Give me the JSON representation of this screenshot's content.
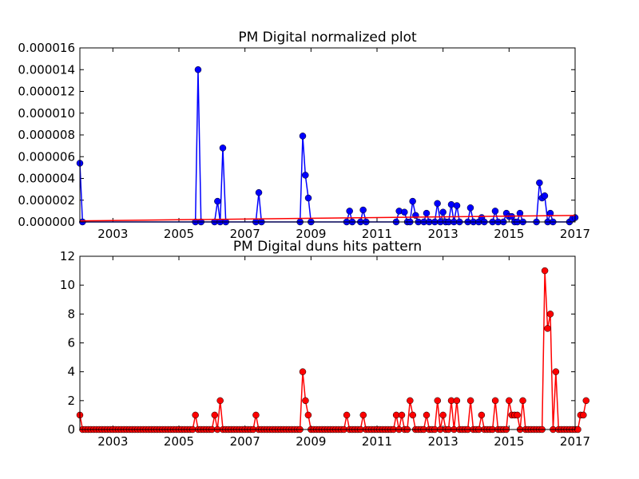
{
  "chart_data": [
    {
      "type": "line",
      "title": "PM Digital normalized plot",
      "xlabel": "",
      "ylabel": "",
      "xlim": [
        2002.0,
        2017.0
      ],
      "ylim": [
        0,
        1.6e-05
      ],
      "xticks": [
        "2003",
        "2005",
        "2007",
        "2009",
        "2011",
        "2013",
        "2015",
        "2017"
      ],
      "yticks": [
        "0.000000",
        "0.000002",
        "0.000004",
        "0.000006",
        "0.000008",
        "0.000010",
        "0.000012",
        "0.000014",
        "0.000016"
      ],
      "grid": false,
      "series": [
        {
          "style": "line-with-markers",
          "color": "#0000ff",
          "points": [
            [
              2002.0,
              5.4e-06
            ],
            [
              2002.08,
              0.0
            ],
            [
              2005.5,
              0.0
            ],
            [
              2005.58,
              1.4e-05
            ],
            [
              2005.67,
              0.0
            ],
            [
              2006.08,
              0.0
            ],
            [
              2006.17,
              1.9e-06
            ],
            [
              2006.25,
              0.0
            ],
            [
              2006.33,
              6.8e-06
            ],
            [
              2006.42,
              0.0
            ],
            [
              2007.33,
              0.0
            ],
            [
              2007.42,
              2.7e-06
            ],
            [
              2007.5,
              0.0
            ],
            [
              2008.67,
              0.0
            ],
            [
              2008.75,
              7.9e-06
            ],
            [
              2008.83,
              4.3e-06
            ],
            [
              2008.92,
              2.2e-06
            ],
            [
              2009.0,
              0.0
            ],
            [
              2010.08,
              0.0
            ],
            [
              2010.17,
              1e-06
            ],
            [
              2010.25,
              0.0
            ],
            [
              2010.5,
              0.0
            ],
            [
              2010.58,
              1.1e-06
            ],
            [
              2010.67,
              0.0
            ],
            [
              2011.58,
              0.0
            ],
            [
              2011.67,
              1e-06
            ],
            [
              2011.83,
              9e-07
            ],
            [
              2011.92,
              0.0
            ],
            [
              2012.0,
              0.0
            ],
            [
              2012.08,
              1.9e-06
            ],
            [
              2012.17,
              6e-07
            ],
            [
              2012.25,
              0.0
            ],
            [
              2012.42,
              0.0
            ],
            [
              2012.5,
              8e-07
            ],
            [
              2012.58,
              0.0
            ],
            [
              2012.75,
              0.0
            ],
            [
              2012.83,
              1.7e-06
            ],
            [
              2012.92,
              0.0
            ],
            [
              2013.0,
              9e-07
            ],
            [
              2013.08,
              0.0
            ],
            [
              2013.17,
              0.0
            ],
            [
              2013.25,
              1.6e-06
            ],
            [
              2013.33,
              0.0
            ],
            [
              2013.42,
              1.5e-06
            ],
            [
              2013.5,
              0.0
            ],
            [
              2013.75,
              0.0
            ],
            [
              2013.83,
              1.3e-06
            ],
            [
              2013.92,
              0.0
            ],
            [
              2014.08,
              0.0
            ],
            [
              2014.17,
              4e-07
            ],
            [
              2014.25,
              0.0
            ],
            [
              2014.5,
              0.0
            ],
            [
              2014.58,
              1e-06
            ],
            [
              2014.67,
              0.0
            ],
            [
              2014.83,
              0.0
            ],
            [
              2014.92,
              8e-07
            ],
            [
              2015.0,
              5e-07
            ],
            [
              2015.08,
              5e-07
            ],
            [
              2015.17,
              0.0
            ],
            [
              2015.25,
              0.0
            ],
            [
              2015.33,
              8e-07
            ],
            [
              2015.42,
              0.0
            ],
            [
              2015.83,
              0.0
            ],
            [
              2015.92,
              3.6e-06
            ],
            [
              2016.0,
              2.2e-06
            ],
            [
              2016.08,
              2.4e-06
            ],
            [
              2016.17,
              0.0
            ],
            [
              2016.25,
              8e-07
            ],
            [
              2016.33,
              0.0
            ],
            [
              2016.83,
              0.0
            ],
            [
              2016.92,
              3e-07
            ],
            [
              2017.0,
              4e-07
            ]
          ]
        },
        {
          "style": "line",
          "color": "#ff0000",
          "points": [
            [
              2002.0,
              1e-07
            ],
            [
              2017.0,
              6e-07
            ]
          ]
        }
      ]
    },
    {
      "type": "line",
      "title": "PM Digital duns hits pattern",
      "xlabel": "",
      "ylabel": "",
      "xlim": [
        2002.0,
        2017.0
      ],
      "ylim": [
        0,
        12
      ],
      "xticks": [
        "2003",
        "2005",
        "2007",
        "2009",
        "2011",
        "2013",
        "2015",
        "2017"
      ],
      "yticks": [
        "0",
        "2",
        "4",
        "6",
        "8",
        "10",
        "12"
      ],
      "grid": false,
      "series": [
        {
          "style": "line-with-markers",
          "color": "#ff0000",
          "monthly_start": 2002.0,
          "values": [
            1,
            0,
            0,
            0,
            0,
            0,
            0,
            0,
            0,
            0,
            0,
            0,
            0,
            0,
            0,
            0,
            0,
            0,
            0,
            0,
            0,
            0,
            0,
            0,
            0,
            0,
            0,
            0,
            0,
            0,
            0,
            0,
            0,
            0,
            0,
            0,
            0,
            0,
            0,
            0,
            0,
            0,
            1,
            0,
            0,
            0,
            0,
            0,
            0,
            1,
            0,
            2,
            0,
            0,
            0,
            0,
            0,
            0,
            0,
            0,
            0,
            0,
            0,
            0,
            1,
            0,
            0,
            0,
            0,
            0,
            0,
            0,
            0,
            0,
            0,
            0,
            0,
            0,
            0,
            0,
            0,
            4,
            2,
            1,
            0,
            0,
            0,
            0,
            0,
            0,
            0,
            0,
            0,
            0,
            0,
            0,
            0,
            1,
            0,
            0,
            0,
            0,
            0,
            1,
            0,
            0,
            0,
            0,
            0,
            0,
            0,
            0,
            0,
            0,
            0,
            1,
            0,
            1,
            0,
            0,
            2,
            1,
            0,
            0,
            0,
            0,
            1,
            0,
            0,
            0,
            2,
            0,
            1,
            0,
            0,
            2,
            0,
            2,
            0,
            0,
            0,
            0,
            2,
            0,
            0,
            0,
            1,
            0,
            0,
            0,
            0,
            2,
            0,
            0,
            0,
            0,
            2,
            1,
            1,
            1,
            0,
            2,
            0,
            0,
            0,
            0,
            0,
            0,
            0,
            11,
            7,
            8,
            0,
            4,
            0,
            0,
            0,
            0,
            0,
            0,
            0,
            0,
            1,
            1,
            2
          ]
        }
      ]
    }
  ]
}
